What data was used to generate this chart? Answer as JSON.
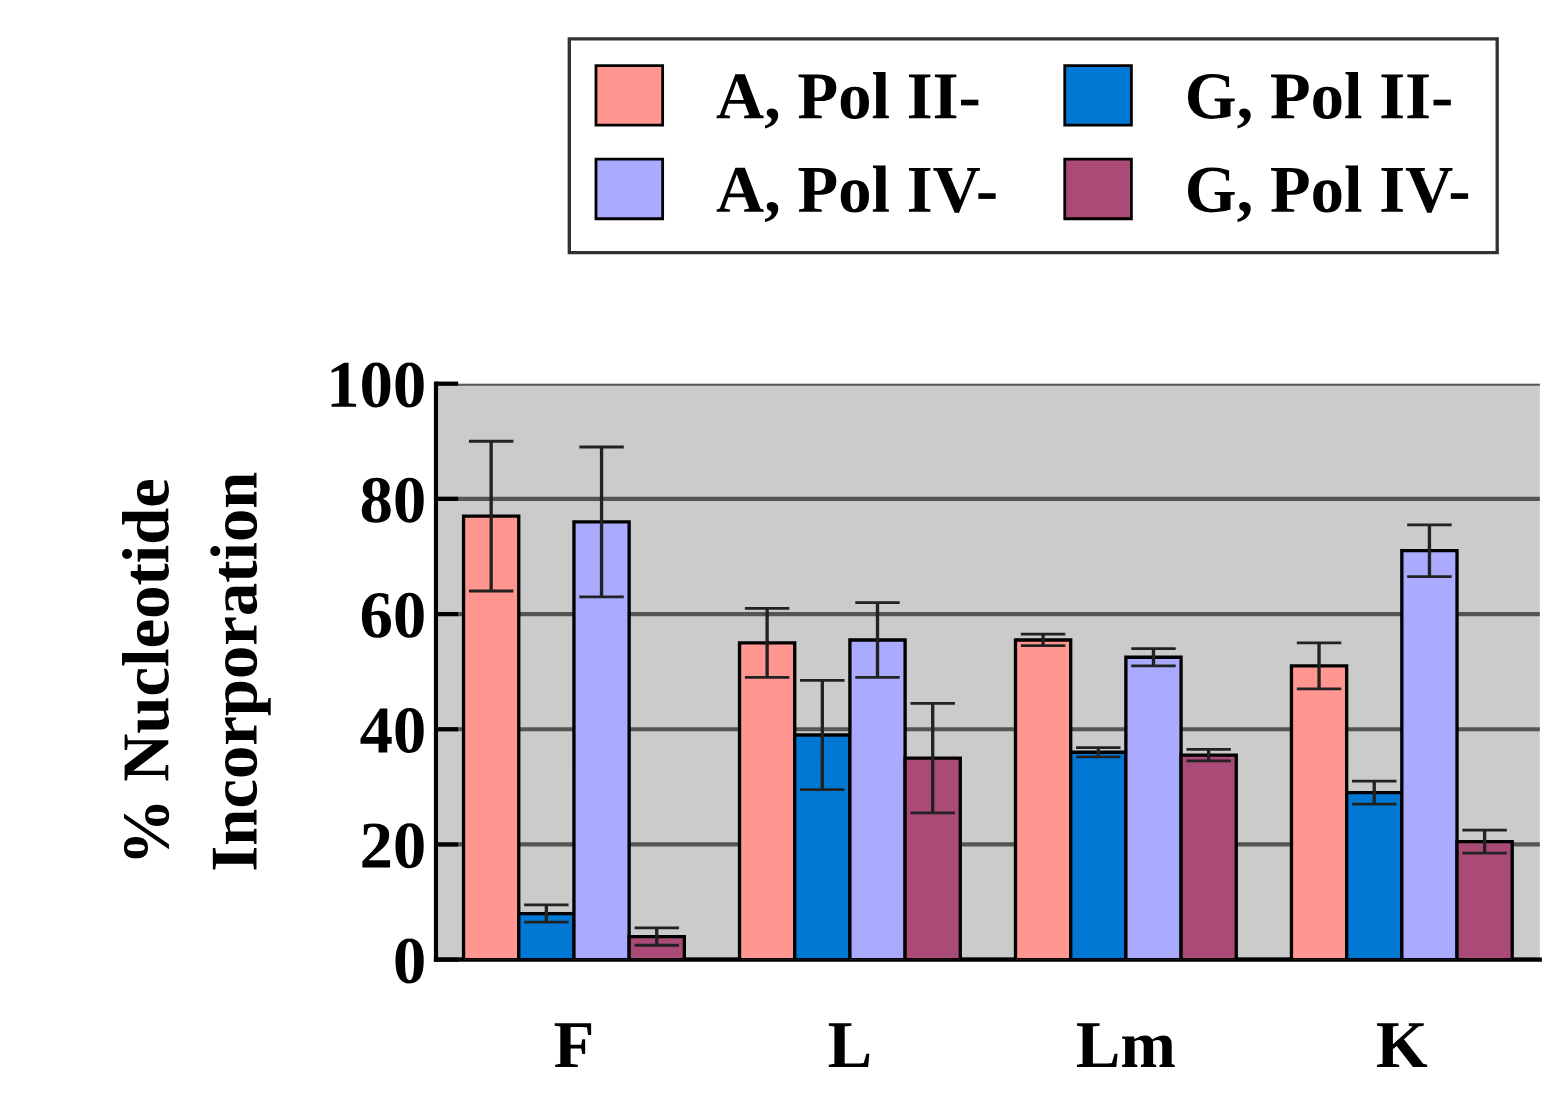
{
  "chart_data": {
    "type": "bar",
    "ylabel": "% Nucleotide\nIncorporation",
    "categories": [
      "F",
      "L",
      "Lm",
      "K"
    ],
    "series": [
      {
        "name": "A, Pol II-",
        "color": "#ff9690",
        "values": [
          77,
          55,
          55.5,
          51
        ],
        "errors": [
          13,
          6,
          1,
          4
        ]
      },
      {
        "name": "G, Pol II-",
        "color": "#0078d4",
        "values": [
          8,
          39,
          36,
          29
        ],
        "errors": [
          1.5,
          9.5,
          0.8,
          2
        ]
      },
      {
        "name": "A, Pol IV-",
        "color": "#aaaaff",
        "values": [
          76,
          55.5,
          52.5,
          71
        ],
        "errors": [
          13,
          6.5,
          1.5,
          4.5
        ]
      },
      {
        "name": "G, Pol IV-",
        "color": "#aa4a76",
        "values": [
          4,
          35,
          35.5,
          20.5
        ],
        "errors": [
          1.5,
          9.5,
          1,
          2
        ]
      }
    ],
    "ylim": [
      0,
      100
    ],
    "yticks": [
      0,
      20,
      40,
      60,
      80,
      100
    ],
    "grid": "y",
    "legend": "top right"
  }
}
